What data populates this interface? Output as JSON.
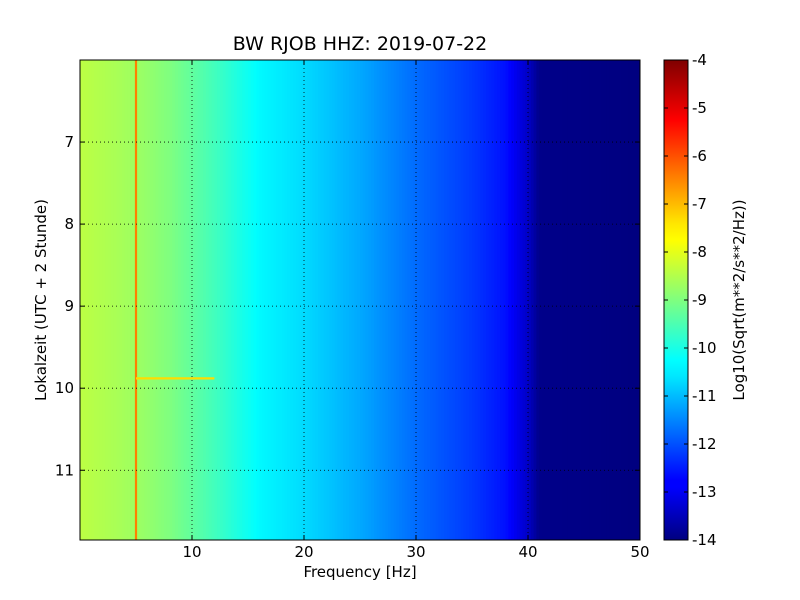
{
  "chart_data": {
    "type": "heatmap",
    "title": "BW RJOB HHZ: 2019-07-22",
    "xlabel": "Frequency [Hz]",
    "ylabel": "Lokalzeit (UTC + 2 Stunde)",
    "xlim": [
      0,
      50
    ],
    "ylim": [
      11.85,
      6.0
    ],
    "x_ticks": [
      {
        "value": 10,
        "label": "10"
      },
      {
        "value": 20,
        "label": "20"
      },
      {
        "value": 30,
        "label": "30"
      },
      {
        "value": 40,
        "label": "40"
      },
      {
        "value": 50,
        "label": "50"
      }
    ],
    "y_ticks": [
      {
        "value": 7,
        "label": "7"
      },
      {
        "value": 8,
        "label": "8"
      },
      {
        "value": 9,
        "label": "9"
      },
      {
        "value": 10,
        "label": "10"
      },
      {
        "value": 11,
        "label": "11"
      }
    ],
    "grid": true,
    "colormap": "jet",
    "colorbar": {
      "label": "Log10(Sqrt(m**2/s**2/Hz))",
      "min": -14,
      "max": -4,
      "ticks": [
        {
          "value": -4,
          "label": "-4"
        },
        {
          "value": -5,
          "label": "-5"
        },
        {
          "value": -6,
          "label": "-6"
        },
        {
          "value": -7,
          "label": "-7"
        },
        {
          "value": -8,
          "label": "-8"
        },
        {
          "value": -9,
          "label": "-9"
        },
        {
          "value": -10,
          "label": "-10"
        },
        {
          "value": -11,
          "label": "-11"
        },
        {
          "value": -12,
          "label": "-12"
        },
        {
          "value": -13,
          "label": "-13"
        },
        {
          "value": -14,
          "label": "-14"
        }
      ]
    },
    "spectrum_profile": [
      {
        "freq": 0,
        "value": -8.4
      },
      {
        "freq": 5,
        "value": -8.7
      },
      {
        "freq": 8,
        "value": -9.0
      },
      {
        "freq": 12,
        "value": -9.6
      },
      {
        "freq": 16,
        "value": -10.3
      },
      {
        "freq": 20,
        "value": -10.6
      },
      {
        "freq": 25,
        "value": -11.1
      },
      {
        "freq": 30,
        "value": -11.7
      },
      {
        "freq": 35,
        "value": -12.2
      },
      {
        "freq": 38,
        "value": -12.6
      },
      {
        "freq": 40,
        "value": -13.3
      },
      {
        "freq": 41,
        "value": -13.9
      },
      {
        "freq": 50,
        "value": -14.0
      }
    ],
    "features": [
      {
        "freq": 5.0,
        "time_start": 6.0,
        "time_end": 11.85,
        "value": -6.5
      },
      {
        "freq_start": 5.0,
        "freq_end": 12.0,
        "time": 9.88,
        "value": -7.4
      }
    ]
  }
}
